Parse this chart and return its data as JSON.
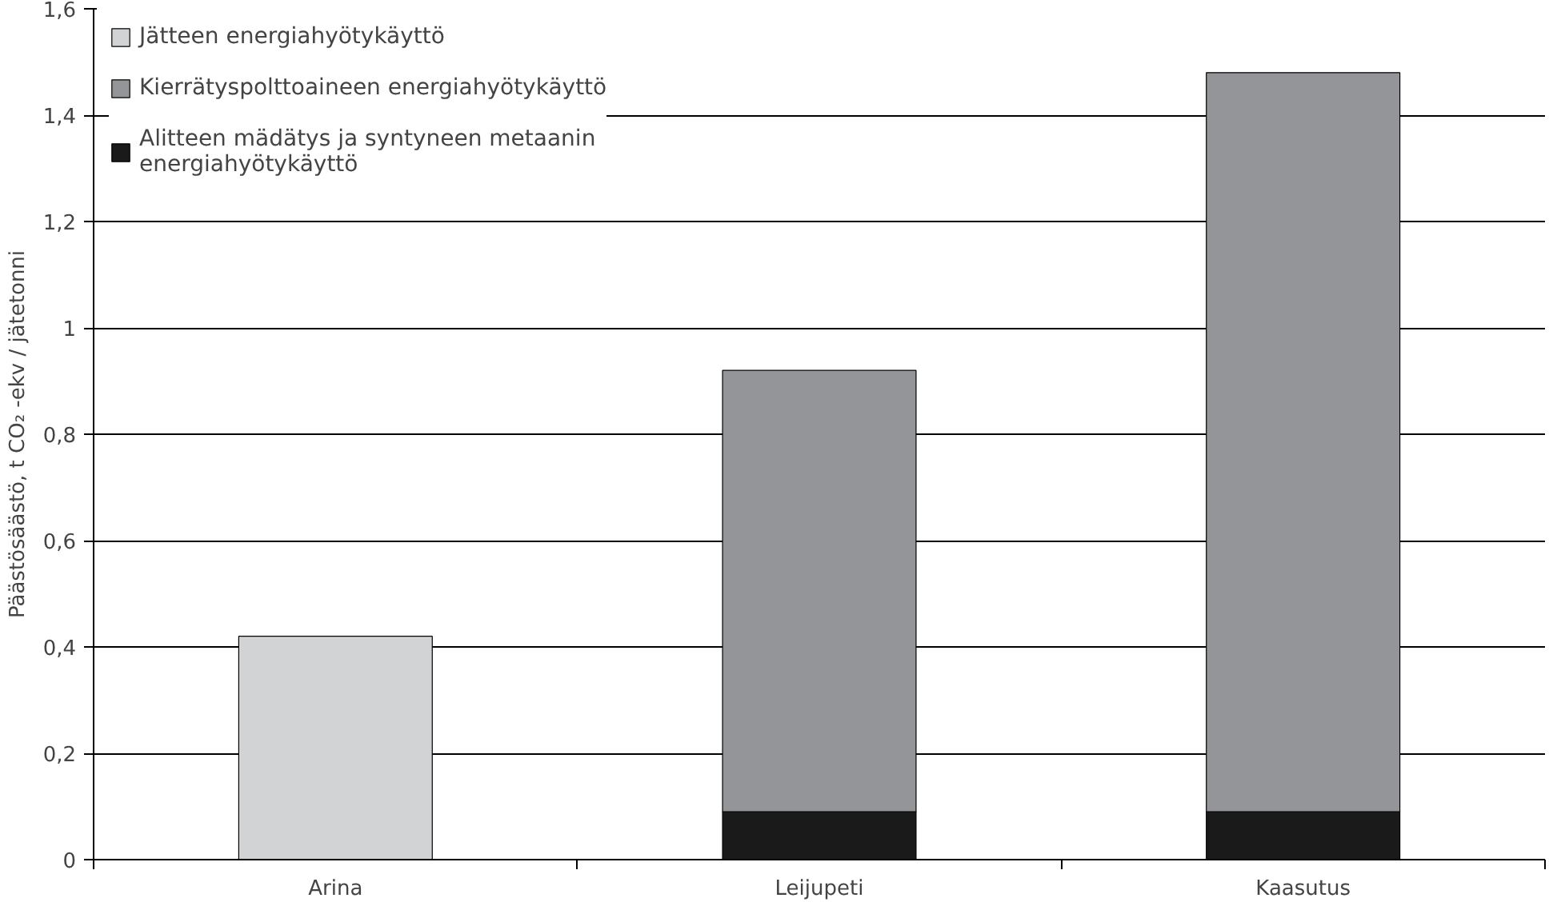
{
  "chart_data": {
    "type": "bar",
    "stacked": true,
    "ylabel": "Päästösäästö, t CO₂ -ekv / jätetonni",
    "categories": [
      "Arina",
      "Leijupeti",
      "Kaasutus"
    ],
    "series": [
      {
        "name": "Alitteen mädätys ja syntyneen metaanin energiahyötykäyttö",
        "color": "#1a1a1a",
        "values": [
          null,
          0.09,
          0.09
        ]
      },
      {
        "name": "Kierrätyspolttoaineen energiahyötykäyttö",
        "color": "#939598",
        "values": [
          null,
          0.83,
          1.39
        ]
      },
      {
        "name": "Jätteen energiahyötykäyttö",
        "color": "#d1d3d4",
        "values": [
          0.42,
          null,
          null
        ]
      }
    ],
    "ylim": [
      0,
      1.6
    ],
    "yticks": [
      0,
      {
        "value": 0.2,
        "label": "0,2"
      },
      {
        "value": 0.4,
        "label": "0,4"
      },
      {
        "value": 0.6,
        "label": "0,6"
      },
      {
        "value": 0.8,
        "label": "0,8"
      },
      1,
      {
        "value": 1.2,
        "label": "1,2"
      },
      {
        "value": 1.4,
        "label": "1,4"
      },
      {
        "value": 1.6,
        "label": "1,6"
      }
    ],
    "grid": "y",
    "legend": "top left"
  }
}
